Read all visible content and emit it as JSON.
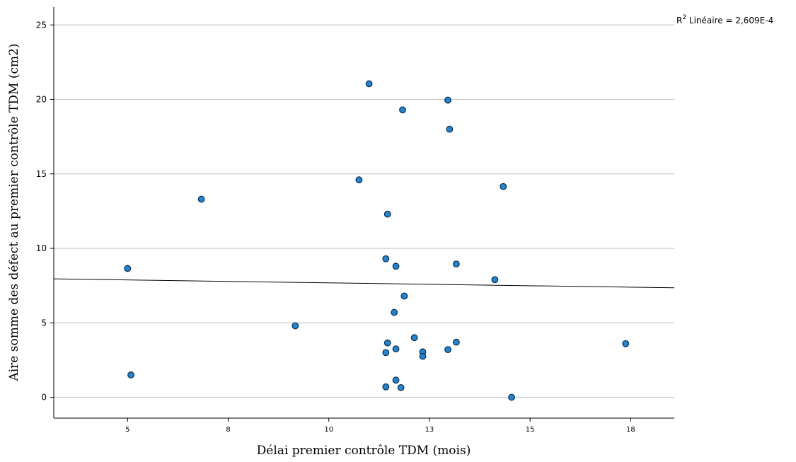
{
  "chart_data": {
    "type": "scatter",
    "xlabel": "Délai premier contrôle TDM (mois)",
    "ylabel": "Aire somme des défect au premier contrôle TDM (cm2)",
    "x_ticks": [
      {
        "value": 4.4,
        "label": "5"
      },
      {
        "value": 7.4,
        "label": "8"
      },
      {
        "value": 10.4,
        "label": "10"
      },
      {
        "value": 13.4,
        "label": "13"
      },
      {
        "value": 16.4,
        "label": "15"
      },
      {
        "value": 19.4,
        "label": "18"
      }
    ],
    "y_ticks": [
      0,
      5,
      10,
      15,
      20,
      25
    ],
    "xlim": [
      2.2,
      20.7
    ],
    "ylim": [
      -1.4,
      26.2
    ],
    "grid": {
      "horizontal": true,
      "vertical": false
    },
    "r2": {
      "prefix": "R",
      "sup": "2",
      "text": " Linéaire = 2,609E-4"
    },
    "fit_line": {
      "x": [
        2.2,
        20.7
      ],
      "y": [
        7.95,
        7.35
      ]
    },
    "marker_color": "#1f85d6",
    "points": [
      {
        "x": 4.4,
        "y": 8.65
      },
      {
        "x": 4.5,
        "y": 1.5
      },
      {
        "x": 6.6,
        "y": 13.3
      },
      {
        "x": 9.4,
        "y": 4.8
      },
      {
        "x": 11.3,
        "y": 14.6
      },
      {
        "x": 11.6,
        "y": 21.05
      },
      {
        "x": 12.1,
        "y": 9.3
      },
      {
        "x": 12.15,
        "y": 12.3
      },
      {
        "x": 12.15,
        "y": 3.65
      },
      {
        "x": 12.1,
        "y": 3.0
      },
      {
        "x": 12.1,
        "y": 0.7
      },
      {
        "x": 12.4,
        "y": 8.8
      },
      {
        "x": 12.35,
        "y": 5.7
      },
      {
        "x": 12.4,
        "y": 3.25
      },
      {
        "x": 12.4,
        "y": 1.15
      },
      {
        "x": 12.6,
        "y": 19.3
      },
      {
        "x": 12.65,
        "y": 6.8
      },
      {
        "x": 12.55,
        "y": 0.65
      },
      {
        "x": 12.95,
        "y": 4.0
      },
      {
        "x": 13.2,
        "y": 3.05
      },
      {
        "x": 13.2,
        "y": 2.75
      },
      {
        "x": 13.95,
        "y": 19.95
      },
      {
        "x": 14.0,
        "y": 18.0
      },
      {
        "x": 13.95,
        "y": 3.2
      },
      {
        "x": 14.2,
        "y": 8.95
      },
      {
        "x": 14.2,
        "y": 3.7
      },
      {
        "x": 15.35,
        "y": 7.9
      },
      {
        "x": 15.6,
        "y": 14.15
      },
      {
        "x": 15.85,
        "y": 0.0
      },
      {
        "x": 19.25,
        "y": 3.6
      }
    ]
  }
}
